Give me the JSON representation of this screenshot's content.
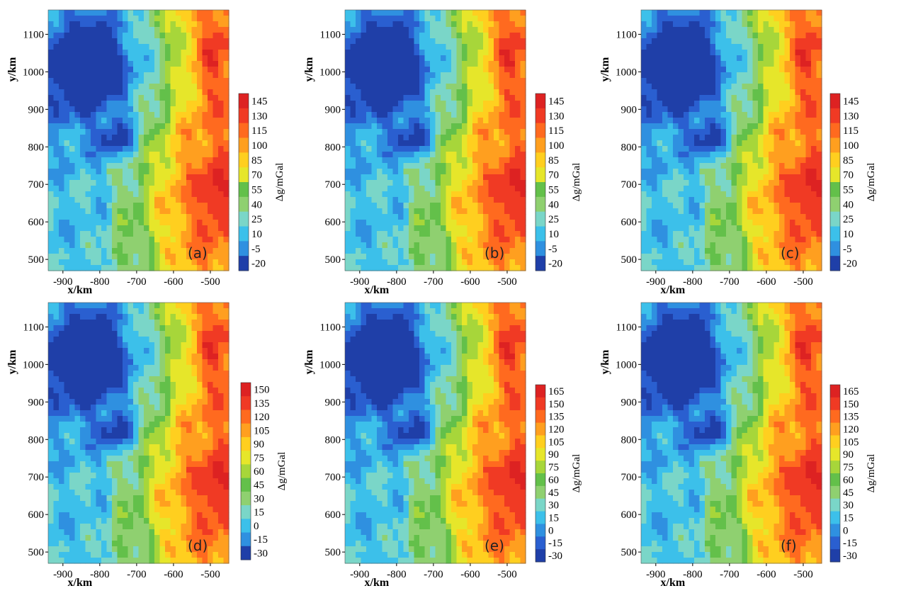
{
  "figure": {
    "panels": [
      {
        "label": "(a)",
        "colorbar_title": "Δg/mGal"
      },
      {
        "label": "(b)",
        "colorbar_title": "Δg/mGal"
      },
      {
        "label": "(c)",
        "colorbar_title": "Δg/mGal"
      },
      {
        "label": "(d)",
        "colorbar_title": "Δg/mGal"
      },
      {
        "label": "(e)",
        "colorbar_title": "Δg/mGal"
      },
      {
        "label": "(f)",
        "colorbar_title": "Δg/mGal"
      }
    ]
  },
  "chart_data": [
    {
      "type": "heatmap",
      "panel": "(a)",
      "xlabel": "x/km",
      "ylabel": "y/km",
      "xticks": [
        "-900",
        "-800",
        "-700",
        "-600",
        "-500"
      ],
      "xlim": [
        -940,
        -450
      ],
      "yticks": [
        "500",
        "600",
        "700",
        "800",
        "900",
        "1000",
        "1100"
      ],
      "ylim": [
        470,
        1165
      ],
      "colorbar": {
        "label": "Δg/mGal",
        "ticks": [
          "145",
          "130",
          "115",
          "100",
          "85",
          "70",
          "55",
          "40",
          "25",
          "10",
          "-5",
          "-20"
        ],
        "range": [
          -20,
          155
        ]
      },
      "pattern": "low (blue) in northwest, high (red) in east near x=-480, y=700 and y=1000"
    },
    {
      "type": "heatmap",
      "panel": "(b)",
      "xlabel": "x/km",
      "ylabel": "y/km",
      "xticks": [
        "-900",
        "-800",
        "-700",
        "-600",
        "-500"
      ],
      "xlim": [
        -940,
        -450
      ],
      "yticks": [
        "500",
        "600",
        "700",
        "800",
        "900",
        "1000",
        "1100"
      ],
      "ylim": [
        470,
        1165
      ],
      "colorbar": {
        "label": "Δg/mGal",
        "ticks": [
          "145",
          "130",
          "115",
          "100",
          "85",
          "70",
          "55",
          "40",
          "25",
          "10",
          "-5",
          "-20"
        ],
        "range": [
          -20,
          155
        ]
      },
      "pattern": "low (blue) in northwest, high (red) in east"
    },
    {
      "type": "heatmap",
      "panel": "(c)",
      "xlabel": "x/km",
      "ylabel": "y/km",
      "xticks": [
        "-900",
        "-800",
        "-700",
        "-600",
        "-500"
      ],
      "xlim": [
        -940,
        -450
      ],
      "yticks": [
        "500",
        "600",
        "700",
        "800",
        "900",
        "1000",
        "1100"
      ],
      "ylim": [
        470,
        1165
      ],
      "colorbar": {
        "label": "Δg/mGal",
        "ticks": [
          "145",
          "130",
          "115",
          "100",
          "85",
          "70",
          "55",
          "40",
          "25",
          "10",
          "-5",
          "-20"
        ],
        "range": [
          -20,
          155
        ]
      },
      "pattern": "low (blue) in northwest, high (red) in east"
    },
    {
      "type": "heatmap",
      "panel": "(d)",
      "xlabel": "x/km",
      "ylabel": "y/km",
      "xticks": [
        "-900",
        "-800",
        "-700",
        "-600",
        "-500"
      ],
      "xlim": [
        -940,
        -450
      ],
      "yticks": [
        "500",
        "600",
        "700",
        "800",
        "900",
        "1000",
        "1100"
      ],
      "ylim": [
        470,
        1165
      ],
      "colorbar": {
        "label": "Δg/mGal",
        "ticks": [
          "150",
          "135",
          "120",
          "105",
          "90",
          "75",
          "60",
          "45",
          "30",
          "15",
          "0",
          "-15",
          "-30"
        ],
        "range": [
          -30,
          160
        ]
      },
      "pattern": "low (blue) in northwest, high (red) in east"
    },
    {
      "type": "heatmap",
      "panel": "(e)",
      "xlabel": "x/km",
      "ylabel": "y/km",
      "xticks": [
        "-900",
        "-800",
        "-700",
        "-600",
        "-500"
      ],
      "xlim": [
        -940,
        -450
      ],
      "yticks": [
        "500",
        "600",
        "700",
        "800",
        "900",
        "1000",
        "1100"
      ],
      "ylim": [
        470,
        1165
      ],
      "colorbar": {
        "label": "Δg/mGal",
        "ticks": [
          "165",
          "150",
          "135",
          "120",
          "105",
          "90",
          "75",
          "60",
          "45",
          "30",
          "15",
          "0",
          "-15",
          "-30"
        ],
        "range": [
          -30,
          170
        ]
      },
      "pattern": "low (blue) in northwest, high (red) in east"
    },
    {
      "type": "heatmap",
      "panel": "(f)",
      "xlabel": "x/km",
      "ylabel": "y/km",
      "xticks": [
        "-900",
        "-800",
        "-700",
        "-600",
        "-500"
      ],
      "xlim": [
        -940,
        -450
      ],
      "yticks": [
        "500",
        "600",
        "700",
        "800",
        "900",
        "1000",
        "1100"
      ],
      "ylim": [
        470,
        1165
      ],
      "colorbar": {
        "label": "Δg/mGal",
        "ticks": [
          "165",
          "150",
          "135",
          "120",
          "105",
          "90",
          "75",
          "60",
          "45",
          "30",
          "15",
          "0",
          "-15",
          "-30"
        ],
        "range": [
          -30,
          170
        ]
      },
      "pattern": "low (blue) in northwest, high (red) in east"
    }
  ],
  "palette": [
    "#1f3fa8",
    "#2a5fd0",
    "#2f90e0",
    "#3cc0ea",
    "#7ad6c8",
    "#8fd070",
    "#63c04a",
    "#a7d63a",
    "#e6e62a",
    "#ffcf1f",
    "#ff9f1f",
    "#ff6a1f",
    "#f03a24",
    "#dd2222"
  ]
}
